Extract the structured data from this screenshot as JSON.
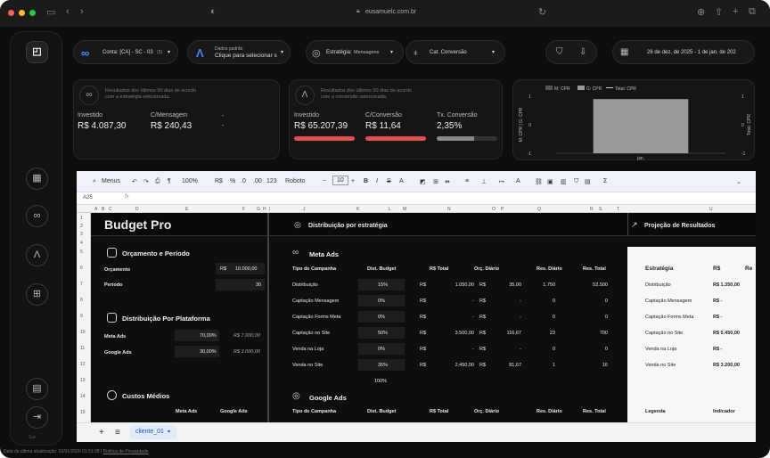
{
  "browser": {
    "url": "eusamuelc.com.br"
  },
  "filters": {
    "account": "Conta: [CA] - SC - 03",
    "account_count": "(3)",
    "source_top": "Dados padrão",
    "source_bottom": "Clique para selecionar s",
    "strategy_label": "Estratégia:",
    "strategy_value": "Mensagens",
    "cat": "Cat. Conversão",
    "dates": "26 de dez. de 2025 - 1 de jan. de 202"
  },
  "meta_card": {
    "note": "Resultados dos últimos 90 dias de acordo com a estratégia selecionada.",
    "invest_label": "Investido",
    "invest_value": "R$ 4.087,30",
    "cpm_label": "C/Mensagem",
    "cpm_value": "R$ 240,43",
    "dash": "-"
  },
  "google_card": {
    "note": "Resultados dos últimos 90 dias de acordo com a conversão selecionada.",
    "invest_label": "Investido",
    "invest_value": "R$ 65.207,39",
    "cc_label": "C/Conversão",
    "cc_value": "R$ 11,64",
    "tx_label": "Tx. Conversão",
    "tx_value": "2,35%"
  },
  "chart_data": {
    "type": "bar",
    "legend": [
      "M: CPR",
      "G: CPR",
      "Total: CPR"
    ],
    "categories": [
      "jan."
    ],
    "series": [
      {
        "name": "G: CPR",
        "values": [
          0.9
        ]
      }
    ],
    "y_left_label": "M: CPR | G: CPR",
    "y_right_label": "Total: CPR",
    "y_left_ticks": [
      "1",
      "0",
      "-1"
    ],
    "y_right_ticks": [
      "1",
      "0",
      "-1"
    ],
    "ylim": [
      -1,
      1
    ],
    "colors": {
      "G: CPR": "#9a9a9a",
      "M: CPR": "#555555",
      "Total: CPR": "#cccccc"
    }
  },
  "toolbar": {
    "menus": "Menus",
    "zoom": "100%",
    "currency": "R$",
    "pct": "%",
    "dec1": ".0",
    "dec2": ".00",
    "num": "123",
    "font": "Roboto",
    "size": "10",
    "cellref": "A25",
    "fx": "fx"
  },
  "columns": [
    "A",
    "B",
    "C",
    "D",
    "E",
    "F",
    "G",
    "H",
    "I",
    "J",
    "K",
    "L",
    "M",
    "N",
    "O",
    "P",
    "Q",
    "R",
    "S",
    "T",
    "U"
  ],
  "rows": [
    "1",
    "2",
    "3",
    "4",
    "5",
    "6",
    "7",
    "8",
    "9",
    "10",
    "11",
    "12",
    "13",
    "14",
    "15"
  ],
  "sheet": {
    "title": "Budget Pro",
    "dist_title": "Distribuição por estratégia",
    "proj_title": "Projeção de Resultados",
    "orc_title": "Orçamento e Período",
    "orc_label": "Orçamento",
    "orc_cur": "R$",
    "orc_value": "10.000,00",
    "periodo_label": "Período",
    "periodo_value": "30",
    "dpp_title": "Distribuição Por Plataforma",
    "meta_label": "Meta Ads",
    "meta_pct": "70,00%",
    "meta_val": "R$ 7.000,00",
    "google_label": "Google Ads",
    "google_pct": "30,00%",
    "google_val": "R$ 3.000,00",
    "custos_title": "Custos Médios",
    "custos_meta": "Meta Ads",
    "custos_google": "Google Ads",
    "meta_section": "Meta Ads",
    "google_section": "Google Ads",
    "headers": [
      "Tipo de Campanha",
      "Dist. Budget",
      "R$ Total",
      "Orç. Diário",
      "Res. Diário",
      "Res. Total"
    ],
    "meta_rows": [
      {
        "tipo": "Distribuição",
        "dist": "15%",
        "total": "1.050,00",
        "diario": "35,00",
        "resd": "1.750",
        "rest": "52.500"
      },
      {
        "tipo": "Captação Mensagem",
        "dist": "0%",
        "total": "-",
        "diario": "-",
        "resd": "0",
        "rest": "0"
      },
      {
        "tipo": "Captação Forms Meta",
        "dist": "0%",
        "total": "-",
        "diario": "-",
        "resd": "0",
        "rest": "0"
      },
      {
        "tipo": "Captação no Site",
        "dist": "50%",
        "total": "3.500,00",
        "diario": "116,67",
        "resd": "23",
        "rest": "700"
      },
      {
        "tipo": "Venda na Loja",
        "dist": "0%",
        "total": "-",
        "diario": "-",
        "resd": "0",
        "rest": "0"
      },
      {
        "tipo": "Venda no Site",
        "dist": "35%",
        "total": "2.450,00",
        "diario": "81,67",
        "resd": "1",
        "rest": "16"
      }
    ],
    "cur": "R$",
    "meta_sum": "100%",
    "proj_head_strategy": "Estratégia",
    "proj_head_rs": "R$",
    "proj_head_re": "Re",
    "proj_rows": [
      {
        "name": "Distribuição",
        "val": "R$ 1.350,00"
      },
      {
        "name": "Captação Mensagem",
        "val": "R$   -"
      },
      {
        "name": "Captação Forms Meta",
        "val": "R$   -"
      },
      {
        "name": "Captação no Site",
        "val": "R$ 5.450,00"
      },
      {
        "name": "Venda na Loja",
        "val": "R$   -"
      },
      {
        "name": "Venda no Site",
        "val": "R$ 3.200,00"
      }
    ],
    "legenda": "Legenda",
    "indicador": "Indicador"
  },
  "tab": {
    "add": "+",
    "list": "≡",
    "name": "cliente_01"
  },
  "status": {
    "text": "Data da última atualização: 02/01/2026 01:51:28 | ",
    "privacy": "Política de Privacidade"
  },
  "rail": {
    "bottom": "Sair"
  }
}
